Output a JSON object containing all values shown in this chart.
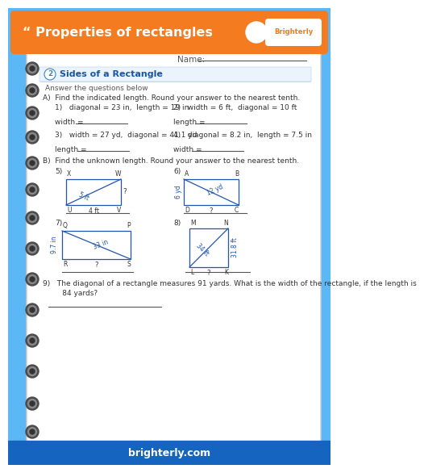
{
  "bg_color": "#5BB8F5",
  "header_color": "#F47B20",
  "page_color": "#FFFFFF",
  "footer_color": "#1565C0",
  "title": "“ Properties of rectangles",
  "footer_text": "brighterly.com",
  "name_label": "Name:",
  "section_num": "2",
  "section_title": "Sides of a Rectangle",
  "section_sub": "Answer the questions below",
  "partA": "A)  Find the indicated length. Round your answer to the nearest tenth.",
  "partB": "B)  Find the unknown length. Round your answer to the nearest tenth.",
  "q1": "1)   diagonal = 23 in,  length = 19 in",
  "q2": "2)   width = 6 ft,  diagonal = 10 ft",
  "q3": "3)   width = 27 yd,  diagonal = 41.1 yd",
  "q4": "4)   diagonal = 8.2 in,  length = 7.5 in",
  "a1_label": "width = ",
  "a2_label": "length = ",
  "a3_label": "length = ",
  "a4_label": "width = ",
  "q9_line1": "9)   The diagonal of a rectangle measures 91 yards. What is the width of the rectangle, if the length is",
  "q9_line2": "      84 yards?",
  "text_color": "#333333",
  "blue_color": "#2255AA",
  "heading_color": "#1A56A0",
  "spiral_outer": "#4A4A4A",
  "spiral_inner": "#7A7A7A",
  "line_color": "#555555"
}
